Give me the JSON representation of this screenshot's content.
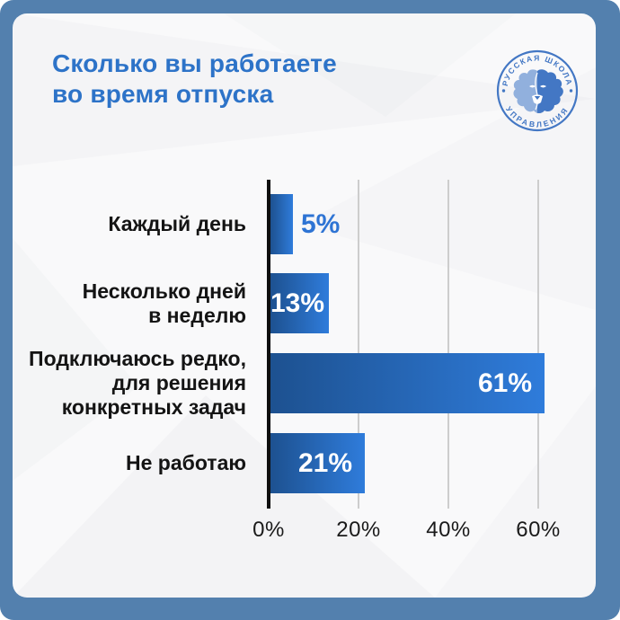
{
  "poster": {
    "frame_color": "#5380ae",
    "card_bg": "#f9f9fa"
  },
  "header": {
    "title_lines": [
      "Сколько вы работаете",
      "во время отпуска"
    ],
    "title_color": "#2d73c8"
  },
  "logo": {
    "name": "Русская школа управления",
    "arc_top": "РУССКАЯ ШКОЛА",
    "arc_bottom": "УПРАВЛЕНИЯ",
    "color": "#4377c4"
  },
  "chart_data": {
    "type": "bar",
    "orientation": "horizontal",
    "title": "Сколько вы работаете во время отпуска",
    "categories": [
      "Каждый день",
      "Несколько дней в неделю",
      "Подключаюсь редко, для решения конкретных задач",
      "Не работаю"
    ],
    "category_lines": [
      [
        "Каждый день"
      ],
      [
        "Несколько дней",
        "в неделю"
      ],
      [
        "Подключаюсь редко,",
        "для решения",
        "конкретных задач"
      ],
      [
        "Не работаю"
      ]
    ],
    "values": [
      5,
      13,
      61,
      21
    ],
    "value_labels": [
      "5%",
      "13%",
      "61%",
      "21%"
    ],
    "x_ticks": [
      "0%",
      "20%",
      "40%",
      "60%"
    ],
    "x_tick_values": [
      0,
      20,
      40,
      60
    ],
    "xlim": [
      0,
      73
    ],
    "grid": true,
    "legend": false,
    "styles": {
      "bar_gradient_start": "#1d5190",
      "bar_gradient_end": "#2f7cdb",
      "value_inside_color": "#ffffff",
      "value_outside_color": "#2e74d4",
      "axis_color": "#0f0f0f",
      "gridline_color": "#cdcdcd",
      "category_color": "#141414",
      "tick_label_color": "#1a1a1a"
    }
  }
}
